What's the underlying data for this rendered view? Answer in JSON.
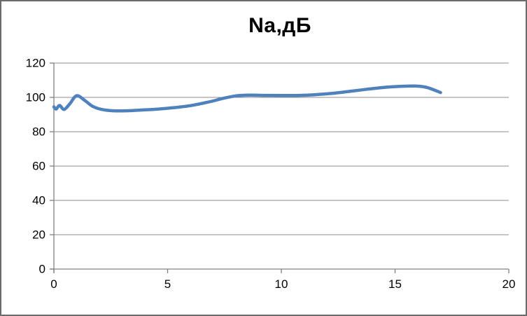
{
  "chart_data": {
    "type": "line",
    "title": "Na,дБ",
    "xlabel": "",
    "ylabel": "",
    "xlim": [
      0,
      20
    ],
    "ylim": [
      0,
      120
    ],
    "xticks": [
      0,
      5,
      10,
      15,
      20
    ],
    "yticks": [
      0,
      20,
      40,
      60,
      80,
      100,
      120
    ],
    "grid": "horizontal",
    "legend": "none",
    "smooth": true,
    "series": [
      {
        "name": "Na",
        "color": "#4F81BD",
        "points": [
          [
            0,
            94.5
          ],
          [
            0.1,
            93.2
          ],
          [
            0.25,
            95.3
          ],
          [
            0.45,
            93.0
          ],
          [
            0.7,
            96.3
          ],
          [
            1.0,
            101.0
          ],
          [
            1.35,
            98.3
          ],
          [
            1.7,
            94.8
          ],
          [
            2.1,
            93.0
          ],
          [
            2.6,
            92.2
          ],
          [
            3.2,
            92.2
          ],
          [
            3.8,
            92.6
          ],
          [
            4.5,
            93.1
          ],
          [
            5.2,
            93.9
          ],
          [
            6.0,
            95.2
          ],
          [
            6.8,
            97.3
          ],
          [
            7.4,
            99.3
          ],
          [
            8.0,
            100.9
          ],
          [
            8.6,
            101.3
          ],
          [
            9.3,
            101.2
          ],
          [
            10.0,
            101.1
          ],
          [
            10.8,
            101.2
          ],
          [
            11.5,
            101.6
          ],
          [
            12.2,
            102.3
          ],
          [
            13.0,
            103.5
          ],
          [
            13.8,
            104.8
          ],
          [
            14.6,
            105.9
          ],
          [
            15.3,
            106.5
          ],
          [
            15.9,
            106.6
          ],
          [
            16.4,
            105.8
          ],
          [
            17.0,
            102.8
          ]
        ]
      }
    ]
  },
  "colors": {
    "line": "#4F81BD",
    "gridline": "#8C8C8C",
    "axis": "#808080",
    "text": "#000000",
    "frame_border": "#6B6B6B",
    "background": "#FFFFFF"
  }
}
